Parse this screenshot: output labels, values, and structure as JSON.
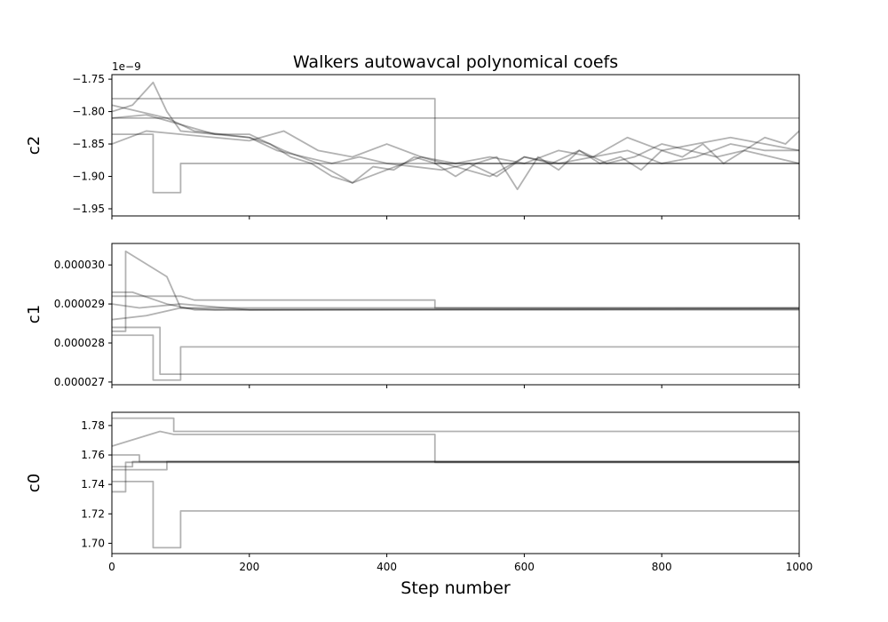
{
  "chart_data": {
    "type": "line",
    "title": "Walkers autowavcal polynomical coefs",
    "xlabel": "Step number",
    "xlim": [
      0,
      1000
    ],
    "xticks": [
      0,
      200,
      400,
      600,
      800,
      1000
    ],
    "xtick_labels": [
      "0",
      "200",
      "400",
      "600",
      "800",
      "1000"
    ],
    "line_color": "#000000",
    "line_alpha": 0.3,
    "panels": [
      {
        "name": "c2",
        "ylabel": "c2",
        "offset_label": "1e−9",
        "ylim": [
          -1.961,
          -1.743
        ],
        "yticks": [
          -1.75,
          -1.8,
          -1.85,
          -1.9,
          -1.95
        ],
        "ytick_labels": [
          "−1.75",
          "−1.80",
          "−1.85",
          "−1.90",
          "−1.95"
        ],
        "walkers": [
          {
            "x": [
              0,
              470,
              470,
              1000
            ],
            "y": [
              -1.78,
              -1.78,
              -1.88,
              -1.88
            ]
          },
          {
            "x": [
              0,
              1000
            ],
            "y": [
              -1.81,
              -1.81
            ]
          },
          {
            "x": [
              0,
              60,
              60,
              100,
              100,
              1000
            ],
            "y": [
              -1.835,
              -1.835,
              -1.925,
              -1.925,
              -1.88,
              -1.88
            ]
          },
          {
            "x": [
              0,
              30,
              60,
              80,
              100,
              150,
              200,
              230,
              260,
              290,
              320,
              350,
              380,
              410,
              440,
              470,
              500,
              530,
              560,
              590,
              620,
              650,
              680,
              710,
              740,
              770,
              800,
              830,
              860,
              890,
              920,
              950,
              980,
              1000
            ],
            "y": [
              -1.8,
              -1.79,
              -1.755,
              -1.8,
              -1.83,
              -1.835,
              -1.84,
              -1.85,
              -1.87,
              -1.88,
              -1.9,
              -1.91,
              -1.885,
              -1.89,
              -1.87,
              -1.88,
              -1.9,
              -1.88,
              -1.87,
              -1.92,
              -1.87,
              -1.89,
              -1.86,
              -1.88,
              -1.87,
              -1.89,
              -1.86,
              -1.87,
              -1.85,
              -1.88,
              -1.86,
              -1.84,
              -1.85,
              -1.83
            ]
          },
          {
            "x": [
              0,
              40,
              80,
              120,
              160,
              200,
              240,
              280,
              320,
              360,
              400,
              440,
              480,
              520,
              560,
              600,
              640,
              680,
              720,
              760,
              800,
              840,
              880,
              920,
              960,
              1000
            ],
            "y": [
              -1.79,
              -1.8,
              -1.81,
              -1.83,
              -1.835,
              -1.84,
              -1.86,
              -1.87,
              -1.88,
              -1.87,
              -1.88,
              -1.885,
              -1.89,
              -1.88,
              -1.9,
              -1.87,
              -1.88,
              -1.86,
              -1.88,
              -1.87,
              -1.85,
              -1.86,
              -1.87,
              -1.86,
              -1.87,
              -1.88
            ]
          },
          {
            "x": [
              0,
              50,
              100,
              150,
              200,
              250,
              300,
              350,
              400,
              450,
              500,
              550,
              600,
              650,
              700,
              750,
              800,
              850,
              900,
              950,
              1000
            ],
            "y": [
              -1.81,
              -1.805,
              -1.82,
              -1.835,
              -1.835,
              -1.86,
              -1.88,
              -1.91,
              -1.89,
              -1.87,
              -1.885,
              -1.9,
              -1.87,
              -1.88,
              -1.87,
              -1.86,
              -1.88,
              -1.87,
              -1.85,
              -1.86,
              -1.86
            ]
          },
          {
            "x": [
              0,
              50,
              100,
              150,
              200,
              250,
              300,
              350,
              400,
              450,
              500,
              550,
              600,
              650,
              700,
              750,
              800,
              850,
              900,
              950,
              1000
            ],
            "y": [
              -1.85,
              -1.83,
              -1.835,
              -1.84,
              -1.845,
              -1.83,
              -1.86,
              -1.87,
              -1.85,
              -1.87,
              -1.88,
              -1.87,
              -1.88,
              -1.86,
              -1.87,
              -1.84,
              -1.86,
              -1.85,
              -1.84,
              -1.85,
              -1.86
            ]
          }
        ]
      },
      {
        "name": "c1",
        "ylabel": "c1",
        "offset_label": "",
        "ylim": [
          2.693e-05,
          3.055e-05
        ],
        "yticks": [
          2.7e-05,
          2.8e-05,
          2.9e-05,
          3e-05
        ],
        "ytick_labels": [
          "0.000027",
          "0.000028",
          "0.000029",
          "0.000030"
        ],
        "walkers": [
          {
            "x": [
              0,
              20,
              20,
              80,
              100,
              1000
            ],
            "y": [
              2.83e-05,
              2.83e-05,
              3.035e-05,
              2.97e-05,
              2.89e-05,
              2.89e-05
            ]
          },
          {
            "x": [
              0,
              70,
              70,
              1000
            ],
            "y": [
              2.84e-05,
              2.84e-05,
              2.72e-05,
              2.72e-05
            ]
          },
          {
            "x": [
              0,
              60,
              60,
              100,
              100,
              1000
            ],
            "y": [
              2.82e-05,
              2.82e-05,
              2.705e-05,
              2.705e-05,
              2.79e-05,
              2.79e-05
            ]
          },
          {
            "x": [
              0,
              100,
              120,
              470,
              470,
              1000
            ],
            "y": [
              2.92e-05,
              2.92e-05,
              2.91e-05,
              2.91e-05,
              2.89e-05,
              2.89e-05
            ]
          },
          {
            "x": [
              0,
              50,
              100,
              150,
              1000
            ],
            "y": [
              2.86e-05,
              2.87e-05,
              2.89e-05,
              2.885e-05,
              2.888e-05
            ]
          },
          {
            "x": [
              0,
              30,
              80,
              120,
              1000
            ],
            "y": [
              2.93e-05,
              2.93e-05,
              2.9e-05,
              2.885e-05,
              2.885e-05
            ]
          },
          {
            "x": [
              0,
              40,
              100,
              200,
              1000
            ],
            "y": [
              2.9e-05,
              2.89e-05,
              2.9e-05,
              2.885e-05,
              2.887e-05
            ]
          }
        ]
      },
      {
        "name": "c0",
        "ylabel": "c0",
        "offset_label": "",
        "ylim": [
          1.693,
          1.789
        ],
        "yticks": [
          1.7,
          1.72,
          1.74,
          1.76,
          1.78
        ],
        "ytick_labels": [
          "1.70",
          "1.72",
          "1.74",
          "1.76",
          "1.78"
        ],
        "walkers": [
          {
            "x": [
              0,
              90,
              90,
              1000
            ],
            "y": [
              1.785,
              1.785,
              1.776,
              1.776
            ]
          },
          {
            "x": [
              0,
              60,
              60,
              100,
              100,
              1000
            ],
            "y": [
              1.742,
              1.742,
              1.697,
              1.697,
              1.722,
              1.722
            ]
          },
          {
            "x": [
              0,
              70,
              90,
              470,
              470,
              1000
            ],
            "y": [
              1.766,
              1.776,
              1.774,
              1.774,
              1.755,
              1.755
            ]
          },
          {
            "x": [
              0,
              20,
              20,
              1000
            ],
            "y": [
              1.735,
              1.735,
              1.755,
              1.755
            ]
          },
          {
            "x": [
              0,
              30,
              30,
              1000
            ],
            "y": [
              1.752,
              1.752,
              1.7555,
              1.7555
            ]
          },
          {
            "x": [
              0,
              80,
              80,
              1000
            ],
            "y": [
              1.75,
              1.75,
              1.7555,
              1.7555
            ]
          },
          {
            "x": [
              0,
              40,
              40,
              1000
            ],
            "y": [
              1.76,
              1.76,
              1.7555,
              1.7555
            ]
          }
        ]
      }
    ]
  }
}
